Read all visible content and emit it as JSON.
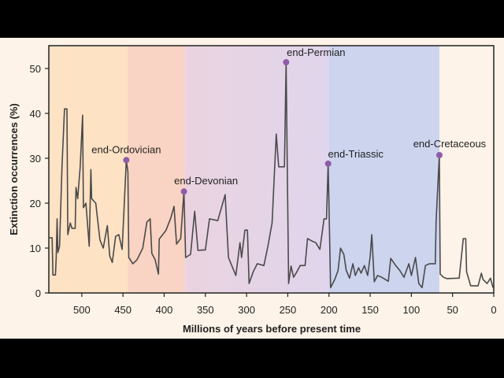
{
  "chart_data": {
    "type": "line",
    "title": "",
    "xlabel": "Millions of years before present time",
    "ylabel": "Extinction occurrences (%)",
    "xlim": [
      540,
      0
    ],
    "ylim": [
      0,
      55
    ],
    "x_ticks": [
      500,
      450,
      400,
      350,
      300,
      250,
      200,
      150,
      100,
      50,
      0
    ],
    "y_ticks": [
      0,
      10,
      20,
      30,
      40,
      50
    ],
    "grid": false,
    "colors": {
      "line": "#4a4a4a",
      "marker": "#8e5ca8",
      "axis": "#222222"
    },
    "bands": [
      {
        "from": 540,
        "to": 444,
        "color": "#fde2c4"
      },
      {
        "from": 444,
        "to": 375,
        "color": "#f9d3c3"
      },
      {
        "from": 375,
        "to": 200,
        "color": "#ead3e0",
        "color_end": "#e0d5ec"
      },
      {
        "from": 200,
        "to": 66,
        "color": "#ccd4ee"
      },
      {
        "from": 66,
        "to": 0,
        "color": "#fdf3e8"
      }
    ],
    "series": [
      {
        "name": "Extinction occurrences",
        "points": [
          [
            540,
            12.3
          ],
          [
            536,
            12.3
          ],
          [
            535,
            4
          ],
          [
            532,
            4
          ],
          [
            531,
            8
          ],
          [
            530,
            16.5
          ],
          [
            529,
            9
          ],
          [
            527,
            10.4
          ],
          [
            524,
            28
          ],
          [
            521,
            41
          ],
          [
            518,
            41
          ],
          [
            517,
            13
          ],
          [
            514,
            15.6
          ],
          [
            512,
            14.4
          ],
          [
            508,
            14.4
          ],
          [
            507,
            23.5
          ],
          [
            505,
            21
          ],
          [
            502,
            28
          ],
          [
            499,
            39.6
          ],
          [
            498,
            19
          ],
          [
            495,
            20
          ],
          [
            491,
            10.4
          ],
          [
            489,
            27.5
          ],
          [
            488,
            21
          ],
          [
            483,
            20
          ],
          [
            478,
            11.8
          ],
          [
            474,
            10
          ],
          [
            469,
            15
          ],
          [
            466,
            8.2
          ],
          [
            463,
            6.8
          ],
          [
            459,
            12.6
          ],
          [
            455,
            13
          ],
          [
            451,
            9.7
          ],
          [
            446,
            29.6
          ],
          [
            444,
            27
          ],
          [
            443,
            7.9
          ],
          [
            438,
            6.5
          ],
          [
            433,
            7.4
          ],
          [
            426,
            10
          ],
          [
            421,
            15.8
          ],
          [
            417,
            16.5
          ],
          [
            415,
            8.8
          ],
          [
            411,
            7.4
          ],
          [
            407,
            4.2
          ],
          [
            406,
            12
          ],
          [
            398,
            13.9
          ],
          [
            392,
            16.7
          ],
          [
            388,
            19.3
          ],
          [
            385,
            10.9
          ],
          [
            380,
            12.1
          ],
          [
            376,
            22.6
          ],
          [
            374,
            7.9
          ],
          [
            368,
            8.6
          ],
          [
            363,
            18.2
          ],
          [
            359,
            9.5
          ],
          [
            350,
            9.6
          ],
          [
            345,
            16.5
          ],
          [
            335,
            16.1
          ],
          [
            326,
            21.9
          ],
          [
            322,
            7.9
          ],
          [
            318,
            6.1
          ],
          [
            313,
            3.9
          ],
          [
            308,
            11.2
          ],
          [
            306,
            7.9
          ],
          [
            302,
            14
          ],
          [
            299,
            14
          ],
          [
            297,
            2.1
          ],
          [
            292,
            4.7
          ],
          [
            287,
            6.5
          ],
          [
            279,
            6.1
          ],
          [
            274,
            10.5
          ],
          [
            269,
            15.6
          ],
          [
            264,
            35.4
          ],
          [
            261,
            28.1
          ],
          [
            254,
            28.1
          ],
          [
            252,
            51.4
          ],
          [
            249,
            2.1
          ],
          [
            246,
            6
          ],
          [
            243,
            3.5
          ],
          [
            239,
            4.7
          ],
          [
            235,
            6.1
          ],
          [
            229,
            6.1
          ],
          [
            226,
            12.1
          ],
          [
            220,
            11.5
          ],
          [
            216,
            11.2
          ],
          [
            211,
            9.7
          ],
          [
            206,
            16.5
          ],
          [
            203,
            16.5
          ],
          [
            201,
            28.8
          ],
          [
            198,
            1.2
          ],
          [
            193,
            3
          ],
          [
            189,
            5
          ],
          [
            186,
            10
          ],
          [
            182,
            8.6
          ],
          [
            179,
            5
          ],
          [
            175,
            3.3
          ],
          [
            171,
            6.5
          ],
          [
            168,
            3.9
          ],
          [
            164,
            5.6
          ],
          [
            161,
            4.4
          ],
          [
            157,
            6.1
          ],
          [
            153,
            3.9
          ],
          [
            150,
            8.2
          ],
          [
            148,
            13
          ],
          [
            145,
            2.5
          ],
          [
            141,
            3.9
          ],
          [
            136,
            3.5
          ],
          [
            128,
            2.6
          ],
          [
            125,
            7.7
          ],
          [
            119,
            6.1
          ],
          [
            114,
            5
          ],
          [
            109,
            3.5
          ],
          [
            103,
            6.5
          ],
          [
            100,
            3.9
          ],
          [
            95,
            7.9
          ],
          [
            91,
            2.1
          ],
          [
            87,
            1.2
          ],
          [
            83,
            6.1
          ],
          [
            78,
            6.5
          ],
          [
            71,
            6.5
          ],
          [
            70,
            16.1
          ],
          [
            66,
            30.7
          ],
          [
            65,
            4.2
          ],
          [
            61,
            3.5
          ],
          [
            57,
            3.2
          ],
          [
            42,
            3.3
          ],
          [
            37,
            12.1
          ],
          [
            34,
            12.1
          ],
          [
            33,
            4.7
          ],
          [
            28,
            1.6
          ],
          [
            19,
            1.6
          ],
          [
            15,
            4.4
          ],
          [
            13,
            3
          ],
          [
            8,
            2.1
          ],
          [
            4,
            3.3
          ],
          [
            1,
            1.2
          ]
        ]
      }
    ],
    "annotations": [
      {
        "label": "end-Ordovician",
        "x": 446,
        "y": 29.6
      },
      {
        "label": "end-Devonian",
        "x": 376,
        "y": 22.6
      },
      {
        "label": "end-Permian",
        "x": 252,
        "y": 51.4
      },
      {
        "label": "end-Triassic",
        "x": 201,
        "y": 28.8
      },
      {
        "label": "end-Cretaceous",
        "x": 66,
        "y": 30.7
      }
    ]
  }
}
